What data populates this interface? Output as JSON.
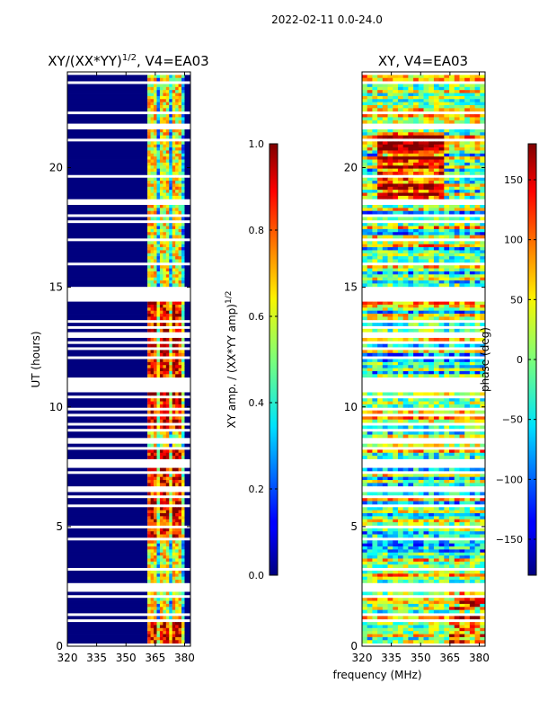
{
  "figure": {
    "suptitle": "2022-02-11 0.0-24.0",
    "xlabel": "frequency (MHz)"
  },
  "chart_data": [
    {
      "type": "heatmap",
      "title_main": "XY/(XX*YY)",
      "title_exp": "1/2",
      "title_tail": ", V4=EA03",
      "xlabel": "",
      "ylabel": "UT (hours)",
      "xlim": [
        320,
        383
      ],
      "ylim": [
        0,
        24
      ],
      "xticks": [
        320,
        335,
        350,
        365,
        380
      ],
      "xtick_labels": [
        "320",
        "335",
        "350",
        "365",
        "380"
      ],
      "yticks": [
        0,
        5,
        10,
        15,
        20
      ],
      "ytick_labels": [
        "0",
        "5",
        "10",
        "15",
        "20"
      ],
      "active_band": [
        361,
        380
      ],
      "colorbar": {
        "label_main": "XY amp. / (XX*YY amp)",
        "label_exp": "1/2",
        "range": [
          0.0,
          1.0
        ],
        "ticks": [
          0.0,
          0.2,
          0.4,
          0.6,
          0.8,
          1.0
        ],
        "tick_labels": [
          "0.0",
          "0.2",
          "0.4",
          "0.6",
          "0.8",
          "1.0"
        ]
      }
    },
    {
      "type": "heatmap",
      "title_main": "XY, V4=EA03",
      "xlabel": "",
      "ylabel": "",
      "xlim": [
        320,
        383
      ],
      "ylim": [
        0,
        24
      ],
      "xticks": [
        320,
        335,
        350,
        365,
        380
      ],
      "xtick_labels": [
        "320",
        "335",
        "350",
        "365",
        "380"
      ],
      "yticks": [
        0,
        5,
        10,
        15,
        20
      ],
      "ytick_labels": [
        "0",
        "5",
        "10",
        "15",
        "20"
      ],
      "colorbar": {
        "label_main": "phase (deg)",
        "range": [
          -180,
          180
        ],
        "ticks": [
          -150,
          -100,
          -50,
          0,
          50,
          100,
          150
        ],
        "tick_labels": [
          "−150",
          "−100",
          "−50",
          "0",
          "50",
          "100",
          "150"
        ]
      }
    }
  ]
}
